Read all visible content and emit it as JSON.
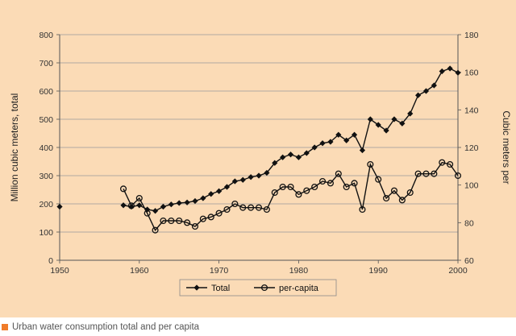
{
  "caption": "Urban water consumption total and per capita",
  "colors": {
    "panel": "#fbdbb6",
    "accent": "#f07c2a",
    "series": "#111111"
  },
  "chart_data": {
    "type": "line",
    "title": "",
    "xlabel": "",
    "ylabel": "Million cubic meters, total",
    "y2label": "Cubic meters per",
    "xlim": [
      1950,
      2000
    ],
    "ylim": [
      0,
      800
    ],
    "y2lim": [
      60,
      180
    ],
    "xticks": [
      "1950",
      "1960",
      "1970",
      "1980",
      "1990",
      "2000"
    ],
    "yticks": [
      "0",
      "100",
      "200",
      "300",
      "400",
      "500",
      "600",
      "700",
      "800"
    ],
    "y2ticks": [
      "60",
      "80",
      "100",
      "120",
      "140",
      "160",
      "180"
    ],
    "grid": true,
    "legend": "bottom-center",
    "series": [
      {
        "name": "Total",
        "axis": "left",
        "marker": "diamond",
        "x": [
          1950,
          1958,
          1959,
          1960,
          1961,
          1962,
          1963,
          1964,
          1965,
          1966,
          1967,
          1968,
          1969,
          1970,
          1971,
          1972,
          1973,
          1974,
          1975,
          1976,
          1977,
          1978,
          1979,
          1980,
          1981,
          1982,
          1983,
          1984,
          1985,
          1986,
          1987,
          1988,
          1989,
          1990,
          1991,
          1992,
          1993,
          1994,
          1995,
          1996,
          1997,
          1998,
          1999,
          2000
        ],
        "values": [
          190,
          195,
          190,
          195,
          180,
          175,
          190,
          198,
          203,
          205,
          210,
          220,
          235,
          245,
          260,
          280,
          285,
          295,
          300,
          310,
          345,
          365,
          375,
          365,
          380,
          400,
          415,
          420,
          445,
          425,
          445,
          390,
          500,
          480,
          460,
          500,
          485,
          520,
          585,
          600,
          620,
          670,
          680,
          665
        ]
      },
      {
        "name": "per-capita",
        "axis": "right",
        "marker": "circle",
        "x": [
          1958,
          1959,
          1960,
          1961,
          1962,
          1963,
          1964,
          1965,
          1966,
          1967,
          1968,
          1969,
          1970,
          1971,
          1972,
          1973,
          1974,
          1975,
          1976,
          1977,
          1978,
          1979,
          1980,
          1981,
          1982,
          1983,
          1984,
          1985,
          1986,
          1987,
          1988,
          1989,
          1990,
          1991,
          1992,
          1993,
          1994,
          1995,
          1996,
          1997,
          1998,
          1999,
          2000
        ],
        "values": [
          98,
          89,
          93,
          85,
          76,
          81,
          81,
          81,
          80,
          78,
          82,
          83,
          85,
          87,
          90,
          88,
          88,
          88,
          87,
          96,
          99,
          99,
          95,
          97,
          99,
          102,
          101,
          106,
          99,
          101,
          87,
          111,
          103,
          93,
          97,
          92,
          96,
          106,
          106,
          106,
          112,
          111,
          105
        ]
      }
    ]
  }
}
